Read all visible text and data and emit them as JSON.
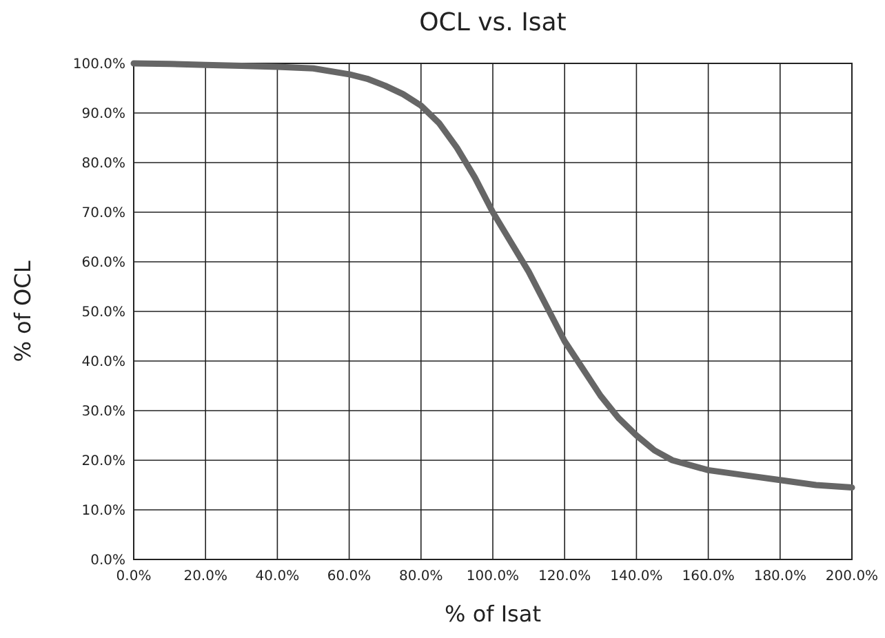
{
  "chart_data": {
    "type": "line",
    "title": "OCL vs. Isat",
    "xlabel": "% of Isat",
    "ylabel": "% of OCL",
    "x": [
      0,
      10,
      20,
      30,
      40,
      50,
      60,
      65,
      70,
      75,
      80,
      85,
      90,
      95,
      100,
      105,
      110,
      115,
      120,
      125,
      130,
      135,
      140,
      145,
      150,
      160,
      170,
      180,
      190,
      200
    ],
    "series": [
      {
        "color": "#666666",
        "values": [
          100,
          99.9,
          99.7,
          99.5,
          99.3,
          99,
          97.8,
          96.9,
          95.5,
          93.8,
          91.5,
          88,
          83,
          77,
          70,
          64,
          58,
          51,
          44,
          38.5,
          33,
          28.5,
          25,
          22,
          20,
          18,
          17,
          16,
          15,
          14.5
        ]
      }
    ],
    "xlim": [
      0,
      200
    ],
    "ylim": [
      0,
      100
    ],
    "xticks": [
      {
        "value": 0,
        "label": "0.0%"
      },
      {
        "value": 20,
        "label": "20.0%"
      },
      {
        "value": 40,
        "label": "40.0%"
      },
      {
        "value": 60,
        "label": "60.0%"
      },
      {
        "value": 80,
        "label": "80.0%"
      },
      {
        "value": 100,
        "label": "100.0%"
      },
      {
        "value": 120,
        "label": "120.0%"
      },
      {
        "value": 140,
        "label": "140.0%"
      },
      {
        "value": 160,
        "label": "160.0%"
      },
      {
        "value": 180,
        "label": "180.0%"
      },
      {
        "value": 200,
        "label": "200.0%"
      }
    ],
    "yticks": [
      {
        "value": 0,
        "label": "0.0%"
      },
      {
        "value": 10,
        "label": "10.0%"
      },
      {
        "value": 20,
        "label": "20.0%"
      },
      {
        "value": 30,
        "label": "30.0%"
      },
      {
        "value": 40,
        "label": "40.0%"
      },
      {
        "value": 50,
        "label": "50.0%"
      },
      {
        "value": 60,
        "label": "60.0%"
      },
      {
        "value": 70,
        "label": "70.0%"
      },
      {
        "value": 80,
        "label": "80.0%"
      },
      {
        "value": 90,
        "label": "90.0%"
      },
      {
        "value": 100,
        "label": "100.0%"
      }
    ],
    "grid": true,
    "marker": "none",
    "line_style": "solid"
  }
}
